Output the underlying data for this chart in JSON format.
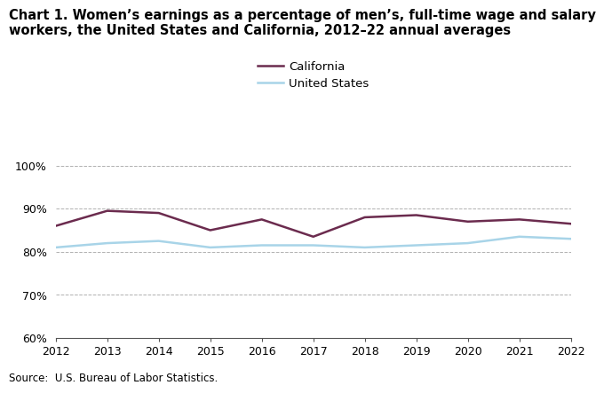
{
  "title_line1": "Chart 1. Women’s earnings as a percentage of men’s, full-time wage and salary",
  "title_line2": "workers, the United States and California, 2012–22 annual averages",
  "years": [
    2012,
    2013,
    2014,
    2015,
    2016,
    2017,
    2018,
    2019,
    2020,
    2021,
    2022
  ],
  "california": [
    86.0,
    89.5,
    89.0,
    85.0,
    87.5,
    83.5,
    88.0,
    88.5,
    87.0,
    87.5,
    86.5
  ],
  "us": [
    81.0,
    82.0,
    82.5,
    81.0,
    81.5,
    81.5,
    81.0,
    81.5,
    82.0,
    83.5,
    83.0
  ],
  "california_color": "#6b2b4e",
  "us_color": "#a8d4e8",
  "ylim": [
    60,
    102
  ],
  "yticks": [
    60,
    70,
    80,
    90,
    100
  ],
  "source": "Source:  U.S. Bureau of Labor Statistics.",
  "legend_california": "California",
  "legend_us": "United States",
  "line_width": 1.8,
  "background_color": "#ffffff",
  "grid_color": "#b0b0b0",
  "title_fontsize": 10.5,
  "axis_fontsize": 9,
  "legend_fontsize": 9.5,
  "source_fontsize": 8.5
}
